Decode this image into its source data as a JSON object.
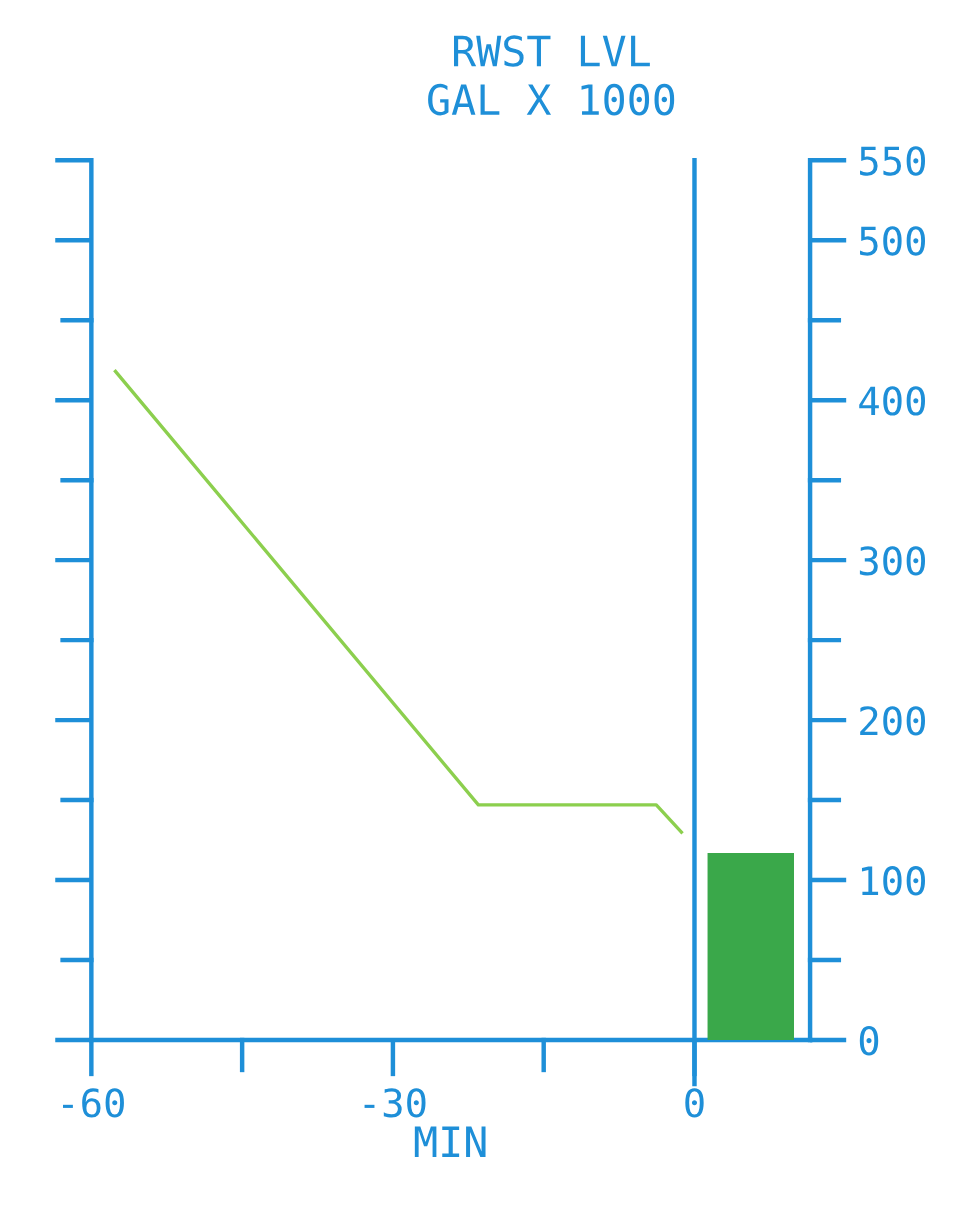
{
  "chart_data": {
    "type": "line",
    "title": "RWST LVL",
    "subtitle": "GAL X 1000",
    "xlabel": "MIN",
    "series": [
      {
        "type": "line",
        "color": "#8ccf4e",
        "x": [
          -57.6,
          -21.5,
          -3.8,
          -1.3
        ],
        "values": [
          418,
          147,
          147,
          130
        ]
      },
      {
        "type": "bar",
        "color": "#3aa84a",
        "x": [
          5.6
        ],
        "values": [
          117
        ]
      }
    ],
    "xlim": [
      -60,
      11.5
    ],
    "xticks": [
      -60,
      {
        "value": -45,
        "label": null
      },
      -30,
      {
        "value": -15,
        "label": null
      },
      0
    ],
    "ylim": [
      0,
      550
    ],
    "yticks": [
      0,
      {
        "value": 50,
        "label": null
      },
      100,
      {
        "value": 150,
        "label": null
      },
      200,
      {
        "value": 250,
        "label": null
      },
      300,
      {
        "value": 350,
        "label": null
      },
      400,
      {
        "value": 450,
        "label": null
      },
      500,
      550
    ],
    "ref_lines": [
      {
        "axis": "x",
        "value": 0,
        "color": "#1e8fd8"
      }
    ],
    "grid": false,
    "legend": false
  }
}
